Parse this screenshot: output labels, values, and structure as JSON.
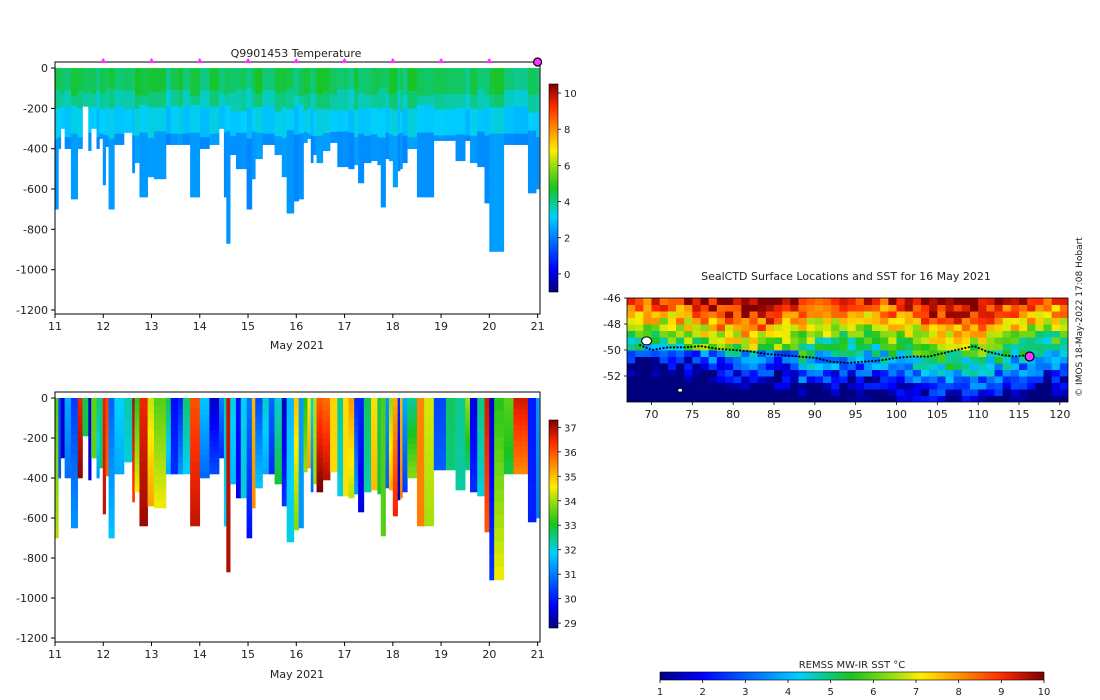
{
  "chart_data": [
    {
      "type": "heatmap",
      "title": "Q9901453  Temperature",
      "xlabel": "May 2021",
      "ylabel": "",
      "xlim": [
        11,
        21.05
      ],
      "ylim": [
        -1220,
        30
      ],
      "xticks": [
        11,
        12,
        13,
        14,
        15,
        16,
        17,
        18,
        19,
        20,
        21
      ],
      "yticks": [
        0,
        -200,
        -400,
        -600,
        -800,
        -1000,
        -1200
      ],
      "ytick_labels": [
        "0",
        "-200",
        "-400",
        "-600",
        "-800",
        "-1000",
        "-1200"
      ],
      "profile_end_days": [
        11.07,
        11.12,
        11.2,
        11.33,
        11.47,
        11.57,
        11.69,
        11.75,
        11.86,
        11.92,
        11.99,
        12.05,
        12.11,
        12.23,
        12.43,
        12.6,
        12.65,
        12.75,
        12.92,
        13.05,
        13.3,
        13.4,
        13.55,
        13.65,
        13.8,
        14.0,
        14.2,
        14.4,
        14.5,
        14.55,
        14.63,
        14.75,
        14.85,
        14.97,
        15.08,
        15.15,
        15.3,
        15.43,
        15.55,
        15.7,
        15.8,
        15.95,
        16.05,
        16.15,
        16.23,
        16.3,
        16.35,
        16.42,
        16.55,
        16.7,
        16.85,
        16.97,
        17.08,
        17.2,
        17.28,
        17.4,
        17.55,
        17.68,
        17.75,
        17.85,
        17.92,
        18.0,
        18.1,
        18.15,
        18.2,
        18.3,
        18.5,
        18.65,
        18.85,
        19.1,
        19.3,
        19.5,
        19.6,
        19.75,
        19.9,
        20.0,
        20.1,
        20.3,
        20.5,
        20.8,
        20.97,
        21.03
      ],
      "profile_max_depths": [
        -700,
        -400,
        -300,
        -400,
        -650,
        -400,
        -190,
        -410,
        -300,
        -400,
        -350,
        -580,
        -390,
        -700,
        -380,
        -320,
        -520,
        -470,
        -640,
        -540,
        -550,
        -380,
        -380,
        -380,
        -380,
        -640,
        -400,
        -380,
        -300,
        -640,
        -870,
        -430,
        -500,
        -500,
        -700,
        -550,
        -450,
        -380,
        -380,
        -430,
        -540,
        -720,
        -660,
        -650,
        -370,
        -350,
        -470,
        -430,
        -470,
        -410,
        -370,
        -490,
        -490,
        -500,
        -480,
        -570,
        -470,
        -460,
        -480,
        -690,
        -450,
        -460,
        -590,
        -510,
        -500,
        -470,
        -400,
        -640,
        -640,
        -360,
        -360,
        -460,
        -360,
        -470,
        -490,
        -670,
        -910,
        -910,
        -380,
        -380,
        -620,
        -600
      ],
      "colorbar": {
        "ticks": [
          0,
          2,
          4,
          6,
          8,
          10
        ],
        "range": [
          -1,
          10.5
        ],
        "label": ""
      },
      "markers": {
        "days": [
          12,
          13,
          14,
          15,
          16,
          17,
          18,
          19,
          20
        ],
        "end_day": 21
      }
    },
    {
      "type": "heatmap",
      "title": "",
      "xlabel": "May 2021",
      "ylabel": "",
      "xlim": [
        11,
        21.05
      ],
      "ylim": [
        -1220,
        30
      ],
      "xticks": [
        11,
        12,
        13,
        14,
        15,
        16,
        17,
        18,
        19,
        20,
        21
      ],
      "yticks": [
        0,
        -200,
        -400,
        -600,
        -800,
        -1000,
        -1200
      ],
      "ytick_labels": [
        "0",
        "-200",
        "-400",
        "-600",
        "-800",
        "-1000",
        "-1200"
      ],
      "profile_end_days": [
        11.07,
        11.12,
        11.2,
        11.33,
        11.47,
        11.57,
        11.69,
        11.75,
        11.86,
        11.92,
        11.99,
        12.05,
        12.11,
        12.23,
        12.43,
        12.6,
        12.65,
        12.75,
        12.92,
        13.05,
        13.3,
        13.4,
        13.55,
        13.65,
        13.8,
        14.0,
        14.2,
        14.4,
        14.5,
        14.55,
        14.63,
        14.75,
        14.85,
        14.97,
        15.08,
        15.15,
        15.3,
        15.43,
        15.55,
        15.7,
        15.8,
        15.95,
        16.05,
        16.15,
        16.23,
        16.3,
        16.35,
        16.42,
        16.55,
        16.7,
        16.85,
        16.97,
        17.08,
        17.2,
        17.28,
        17.4,
        17.55,
        17.68,
        17.75,
        17.85,
        17.92,
        18.0,
        18.1,
        18.15,
        18.2,
        18.3,
        18.5,
        18.65,
        18.85,
        19.1,
        19.3,
        19.5,
        19.6,
        19.75,
        19.9,
        20.0,
        20.1,
        20.3,
        20.5,
        20.8,
        20.97,
        21.03
      ],
      "profile_max_depths": [
        -700,
        -400,
        -300,
        -400,
        -650,
        -400,
        -190,
        -410,
        -300,
        -400,
        -350,
        -580,
        -390,
        -700,
        -380,
        -320,
        -520,
        -470,
        -640,
        -540,
        -550,
        -380,
        -380,
        -380,
        -380,
        -640,
        -400,
        -380,
        -300,
        -640,
        -870,
        -430,
        -500,
        -500,
        -700,
        -550,
        -450,
        -380,
        -380,
        -430,
        -540,
        -720,
        -660,
        -650,
        -370,
        -350,
        -470,
        -430,
        -470,
        -410,
        -370,
        -490,
        -490,
        -500,
        -480,
        -570,
        -470,
        -460,
        -480,
        -690,
        -450,
        -460,
        -590,
        -510,
        -500,
        -470,
        -400,
        -640,
        -640,
        -360,
        -360,
        -460,
        -360,
        -470,
        -490,
        -670,
        -910,
        -910,
        -380,
        -380,
        -620,
        -600
      ],
      "colorbar": {
        "ticks": [
          29,
          30,
          31,
          32,
          33,
          34,
          35,
          36,
          37
        ],
        "range": [
          28.8,
          37.3
        ],
        "label": ""
      }
    },
    {
      "type": "heatmap",
      "title": "SealCTD Surface Locations and SST for 16 May 2021",
      "xlabel": "",
      "ylabel": "",
      "xlim": [
        67,
        121
      ],
      "ylim": [
        -54,
        -46
      ],
      "xticks": [
        70,
        75,
        80,
        85,
        90,
        95,
        100,
        105,
        110,
        115,
        120
      ],
      "yticks": [
        -46,
        -48,
        -50,
        -52
      ],
      "ytick_labels": [
        "-46",
        "-48",
        "-50",
        "-52"
      ],
      "track": {
        "lon": [
          68.5,
          70,
          72,
          74,
          76,
          78,
          80,
          82,
          84,
          86,
          88,
          90,
          92,
          94,
          96,
          98,
          100,
          102,
          104,
          106,
          108,
          109.5,
          111,
          113,
          114.5,
          116,
          116.5
        ],
        "lat": [
          -49.6,
          -50.0,
          -49.8,
          -49.8,
          -49.7,
          -49.9,
          -50.0,
          -50.1,
          -50.3,
          -50.4,
          -50.5,
          -50.6,
          -50.9,
          -51.0,
          -50.9,
          -50.8,
          -50.6,
          -50.5,
          -50.5,
          -50.2,
          -49.9,
          -49.7,
          -50.1,
          -50.4,
          -50.5,
          -50.4,
          -50.5
        ]
      },
      "islands": {
        "lon": [
          69.4,
          73.5
        ],
        "lat": [
          -49.3,
          -53.1
        ]
      },
      "current_position": {
        "lon": 116.3,
        "lat": -50.5
      },
      "sst_colorbar": {
        "label": "REMSS MW-IR SST °C",
        "ticks": [
          1,
          2,
          3,
          4,
          5,
          6,
          7,
          8,
          9,
          10
        ],
        "range": [
          1,
          10
        ]
      }
    }
  ],
  "credit": "© IMOS 18-May-2022 17:08 Hobart",
  "colors": {
    "marker": "#ff33ff",
    "track": "#000000"
  }
}
